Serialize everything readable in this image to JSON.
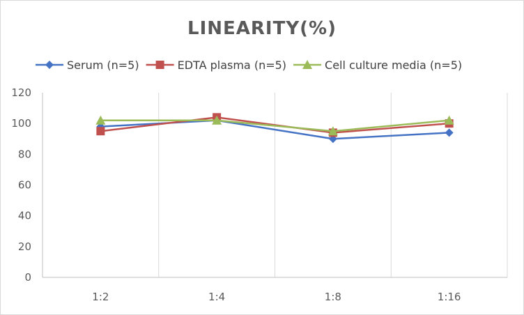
{
  "chart_data": {
    "type": "line",
    "title": "LINEARITY(%)",
    "xlabel": "",
    "ylabel": "",
    "categories": [
      "1:2",
      "1:4",
      "1:8",
      "1:16"
    ],
    "ylim": [
      0,
      120
    ],
    "yticks": [
      0,
      20,
      40,
      60,
      80,
      100,
      120
    ],
    "grid": "vertical",
    "legend_position": "top",
    "series": [
      {
        "name": "Serum (n=5)",
        "values": [
          98,
          102,
          90,
          94
        ],
        "color": "#4472c4",
        "marker": "diamond"
      },
      {
        "name": "EDTA plasma (n=5)",
        "values": [
          95,
          104,
          94,
          100
        ],
        "color": "#c0504d",
        "marker": "square"
      },
      {
        "name": "Cell culture media (n=5)",
        "values": [
          102,
          102,
          95,
          102
        ],
        "color": "#9bbb59",
        "marker": "triangle"
      }
    ]
  }
}
